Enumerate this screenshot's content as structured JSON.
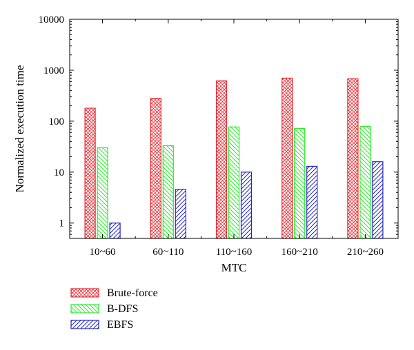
{
  "chart_data": {
    "type": "bar",
    "categories": [
      "10~60",
      "60~110",
      "110~160",
      "160~210",
      "210~260"
    ],
    "series": [
      {
        "name": "Brute-force",
        "values": [
          180,
          280,
          620,
          700,
          680
        ],
        "color": "#e8262e",
        "pattern": "crosshatch"
      },
      {
        "name": "B-DFS",
        "values": [
          30,
          33,
          77,
          72,
          79
        ],
        "color": "#2ee82e",
        "pattern": "diagonal-down"
      },
      {
        "name": "EBFS",
        "values": [
          1.0,
          4.6,
          10,
          13,
          16
        ],
        "color": "#2626c8",
        "pattern": "diagonal-up"
      }
    ],
    "xlabel": "MTC",
    "ylabel": "Normalized execution time",
    "yscale": "log",
    "ylim": [
      0.5,
      10000
    ],
    "yticks": [
      1,
      10,
      100,
      1000,
      10000
    ],
    "ytick_labels": [
      "1",
      "10",
      "100",
      "1000",
      "10000"
    ],
    "grid": false,
    "legend_position": "below-left"
  }
}
